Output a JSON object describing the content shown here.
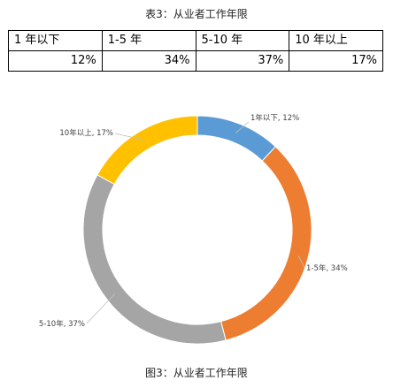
{
  "table": {
    "title": "表3：从业者工作年限",
    "headers": [
      "1 年以下",
      "1-5 年",
      "5-10 年",
      "10 年以上"
    ],
    "values": [
      "12%",
      "34%",
      "37%",
      "17%"
    ]
  },
  "chart_data": {
    "type": "pie",
    "donut": true,
    "categories": [
      "1年以下",
      "1-5年",
      "5-10年",
      "10年以上"
    ],
    "values": [
      12,
      34,
      37,
      17
    ],
    "unit": "%",
    "data_labels": [
      "1年以下, 12%",
      "1-5年, 34%",
      "5-10年, 37%",
      "10年以上, 17%"
    ],
    "colors": [
      "#5B9BD5",
      "#ED7D31",
      "#A5A5A5",
      "#FFC000"
    ],
    "start_angle_deg": 0,
    "direction": "clockwise",
    "title": "",
    "caption": "图3：从业者工作年限",
    "legend": "none"
  }
}
